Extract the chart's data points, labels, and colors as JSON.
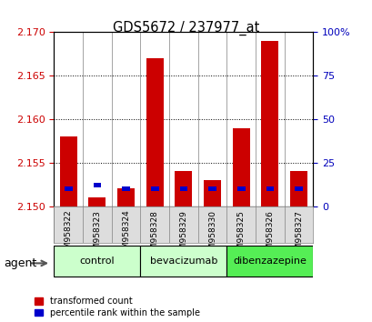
{
  "title": "GDS5672 / 237977_at",
  "samples": [
    "GSM958322",
    "GSM958323",
    "GSM958324",
    "GSM958328",
    "GSM958329",
    "GSM958330",
    "GSM958325",
    "GSM958326",
    "GSM958327"
  ],
  "red_tops": [
    2.158,
    2.151,
    2.152,
    2.167,
    2.154,
    2.153,
    2.159,
    2.169,
    2.154
  ],
  "blue_pct": [
    10,
    12,
    10,
    10,
    10,
    10,
    10,
    10,
    10
  ],
  "ylim": [
    2.15,
    2.17
  ],
  "yticks": [
    2.15,
    2.155,
    2.16,
    2.165,
    2.17
  ],
  "right_yticks": [
    0,
    25,
    50,
    75,
    100
  ],
  "groups": [
    {
      "label": "control",
      "indices": [
        0,
        1,
        2
      ],
      "color": "#ccffcc"
    },
    {
      "label": "bevacizumab",
      "indices": [
        3,
        4,
        5
      ],
      "color": "#ccffcc"
    },
    {
      "label": "dibenzazepine",
      "indices": [
        6,
        7,
        8
      ],
      "color": "#55ee55"
    }
  ],
  "bar_width": 0.6,
  "bar_color_red": "#cc0000",
  "bar_color_blue": "#0000cc",
  "base_value": 2.15,
  "agent_label": "agent",
  "legend_red": "transformed count",
  "legend_blue": "percentile rank within the sample",
  "tick_color_left": "#cc0000",
  "tick_color_right": "#0000bb"
}
